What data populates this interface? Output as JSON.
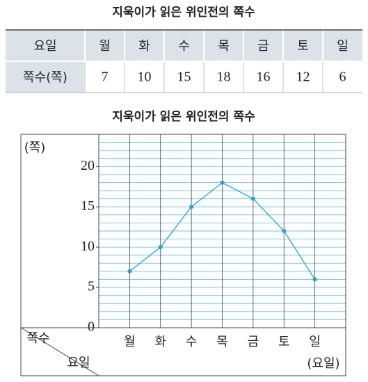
{
  "table": {
    "title": "지욱이가 읽은 위인전의 쪽수",
    "header": [
      "요일",
      "월",
      "화",
      "수",
      "목",
      "금",
      "토",
      "일"
    ],
    "row": [
      "쪽수(쪽)",
      7,
      10,
      15,
      18,
      16,
      12,
      6
    ]
  },
  "chart_data": {
    "type": "line",
    "title": "지욱이가 읽은 위인전의 쪽수",
    "y_label": "(쪽)",
    "x_label": "(요일)",
    "corner_value_label": "쪽수",
    "corner_category_label": "요일",
    "categories": [
      "월",
      "화",
      "수",
      "목",
      "금",
      "토",
      "일"
    ],
    "values": [
      7,
      10,
      15,
      18,
      16,
      12,
      6
    ],
    "color": "#1fa3d9",
    "ylim": [
      0,
      24
    ],
    "yticks": [
      0,
      5,
      10,
      15,
      20
    ],
    "ygrid": [
      0,
      1,
      2,
      3,
      4,
      5,
      6,
      7,
      8,
      9,
      10,
      11,
      12,
      13,
      14,
      15,
      16,
      17,
      18,
      19,
      20,
      21,
      22,
      23,
      24
    ],
    "grid_color": "#6cc3e0"
  }
}
